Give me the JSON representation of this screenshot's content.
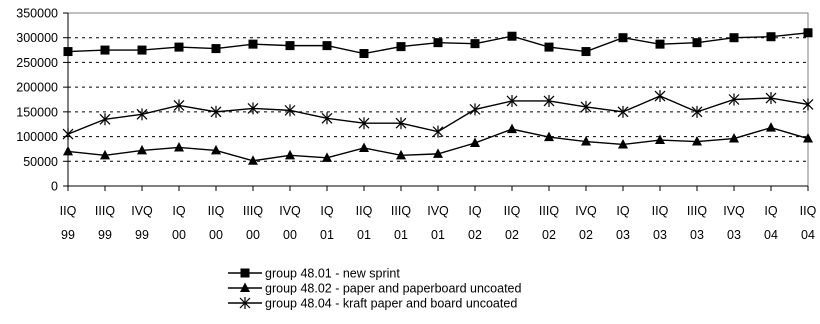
{
  "chart_data": {
    "type": "line",
    "title": "",
    "xlabel": "",
    "ylabel": "",
    "categories": [
      [
        "IIQ",
        "99"
      ],
      [
        "IIIQ",
        "99"
      ],
      [
        "IVQ",
        "99"
      ],
      [
        "IQ",
        "00"
      ],
      [
        "IIQ",
        "00"
      ],
      [
        "IIIQ",
        "00"
      ],
      [
        "IVQ",
        "00"
      ],
      [
        "IQ",
        "01"
      ],
      [
        "IIQ",
        "01"
      ],
      [
        "IIIQ",
        "01"
      ],
      [
        "IVQ",
        "01"
      ],
      [
        "IQ",
        "02"
      ],
      [
        "IIQ",
        "02"
      ],
      [
        "IIIQ",
        "02"
      ],
      [
        "IVQ",
        "02"
      ],
      [
        "IQ",
        "03"
      ],
      [
        "IIQ",
        "03"
      ],
      [
        "IIIQ",
        "03"
      ],
      [
        "IVQ",
        "03"
      ],
      [
        "IQ",
        "04"
      ],
      [
        "IIQ",
        "04"
      ]
    ],
    "ylim": [
      0,
      350000
    ],
    "yticks": [
      0,
      50000,
      100000,
      150000,
      200000,
      250000,
      300000,
      350000
    ],
    "ytick_labels": [
      "0",
      "50000",
      "100000",
      "150000",
      "200000",
      "250000",
      "300000",
      "350000"
    ],
    "grid": "horizontal-dashed",
    "legend_position": "bottom",
    "series": [
      {
        "name": "group 48.01 - new sprint",
        "marker": "square",
        "color": "#000000",
        "values": [
          272000,
          275000,
          275000,
          281000,
          278000,
          287000,
          284000,
          284000,
          268000,
          282000,
          290000,
          288000,
          303000,
          281000,
          272000,
          300000,
          287000,
          290000,
          300000,
          302000,
          310000
        ]
      },
      {
        "name": "group 48.02 - paper and paperboard uncoated",
        "marker": "triangle",
        "color": "#000000",
        "values": [
          70000,
          62000,
          72000,
          78000,
          72000,
          51000,
          62000,
          57000,
          77000,
          62000,
          65000,
          87000,
          115000,
          99000,
          90000,
          84000,
          93000,
          90000,
          96000,
          118000,
          96000
        ]
      },
      {
        "name": "group 48.04 - kraft paper and board uncoated",
        "marker": "star",
        "color": "#000000",
        "values": [
          105000,
          135000,
          145000,
          163000,
          150000,
          157000,
          153000,
          137000,
          127000,
          127000,
          110000,
          155000,
          172000,
          172000,
          160000,
          150000,
          182000,
          150000,
          175000,
          178000,
          165000
        ]
      }
    ]
  }
}
